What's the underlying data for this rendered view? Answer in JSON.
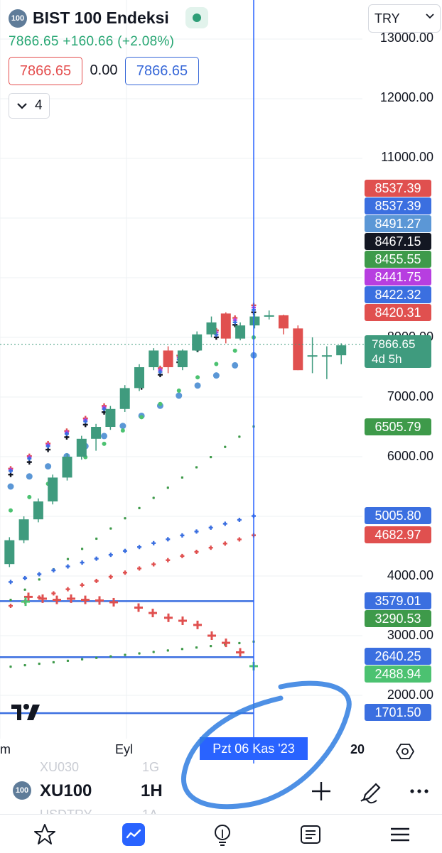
{
  "header": {
    "exchange_badge": "100",
    "title": "BIST 100 Endeksi",
    "change_line": "7866.65 +160.66 (+2.08%)",
    "bid": "7866.65",
    "spread": "0.00",
    "ask": "7866.65",
    "indicator_count": "4",
    "currency": "TRY"
  },
  "axis": {
    "price_labels": [
      "13000.00",
      "12000.00",
      "11000.00",
      "8000.00",
      "7000.00",
      "6000.00",
      "4000.00",
      "3000.00",
      "2000.00"
    ],
    "time_labels": [
      "m",
      "Eyl",
      "20"
    ],
    "crosshair_date": "Pzt 06 Kas '23"
  },
  "price_tags": [
    {
      "value": "8537.39",
      "color": "#e0504f"
    },
    {
      "value": "8537.39",
      "color": "#3b6fe0"
    },
    {
      "value": "8491.27",
      "color": "#5b97d6"
    },
    {
      "value": "8467.15",
      "color": "#131722"
    },
    {
      "value": "8455.55",
      "color": "#3e9a4a"
    },
    {
      "value": "8441.75",
      "color": "#b73ee0"
    },
    {
      "value": "8422.32",
      "color": "#3b6fe0"
    },
    {
      "value": "8420.31",
      "color": "#e0504f"
    },
    {
      "value": "6505.79",
      "color": "#3e9a4a"
    },
    {
      "value": "5005.80",
      "color": "#3b6fe0"
    },
    {
      "value": "4682.97",
      "color": "#e0504f"
    },
    {
      "value": "3579.01",
      "color": "#3b6fe0"
    },
    {
      "value": "3290.53",
      "color": "#3e9a4a"
    },
    {
      "value": "2640.25",
      "color": "#3b6fe0"
    },
    {
      "value": "2488.94",
      "color": "#4cc271"
    },
    {
      "value": "1701.50",
      "color": "#3b6fe0"
    }
  ],
  "current_price": {
    "value": "7866.65",
    "countdown": "4d 5h",
    "color": "#3f9b7e"
  },
  "candles": [
    [
      3900,
      4250,
      3850,
      4200
    ],
    [
      4200,
      4650,
      4150,
      4600
    ],
    [
      4600,
      5000,
      4550,
      4950
    ],
    [
      4950,
      5300,
      4900,
      5250
    ],
    [
      5250,
      5700,
      5200,
      5650
    ],
    [
      5650,
      6050,
      5600,
      6000
    ],
    [
      6000,
      6350,
      5950,
      6300
    ],
    [
      6300,
      6550,
      6100,
      6500
    ],
    [
      6500,
      6850,
      6450,
      6800
    ],
    [
      6800,
      7200,
      6750,
      7150
    ],
    [
      7150,
      7550,
      7100,
      7500
    ],
    [
      7500,
      7820,
      7450,
      7780
    ],
    [
      7780,
      7850,
      7400,
      7500
    ],
    [
      7500,
      7800,
      7450,
      7780
    ],
    [
      7780,
      8100,
      7750,
      8050
    ],
    [
      8050,
      8350,
      8000,
      8250
    ],
    [
      8400,
      8420,
      7900,
      7980
    ],
    [
      7980,
      8250,
      7950,
      8200
    ],
    [
      8200,
      8400,
      8150,
      8350
    ],
    [
      8350,
      8450,
      8300,
      8370
    ],
    [
      8370,
      8380,
      8050,
      8150
    ],
    [
      8150,
      8200,
      7450,
      7450
    ],
    [
      7700,
      8000,
      7400,
      7700
    ],
    [
      7700,
      7850,
      7300,
      7700
    ],
    [
      7700,
      7900,
      7550,
      7866.65
    ]
  ],
  "colors": {
    "up": "#3f9b7e",
    "down": "#e0504f",
    "accent": "#2963ff",
    "crosshair": "#2963ff",
    "annotation": "#2f7de1"
  },
  "horizontal_lines": [
    3579.01,
    2640.25,
    1701.5
  ],
  "toolbar": {
    "symbol": "XU100",
    "interval": "1H",
    "ghost_symbol_1": "XU030",
    "ghost_interval_1": "1G",
    "ghost_symbol_2": "USDTRY",
    "ghost_interval_2": "1A"
  },
  "icons": {
    "add": "plus-icon",
    "draw": "pen-icon",
    "more": "more-icon",
    "watchlist": "star-icon",
    "chart": "chart-icon",
    "ideas": "lightbulb-icon",
    "news": "news-icon",
    "menu": "menu-icon",
    "settings": "settings-icon"
  }
}
